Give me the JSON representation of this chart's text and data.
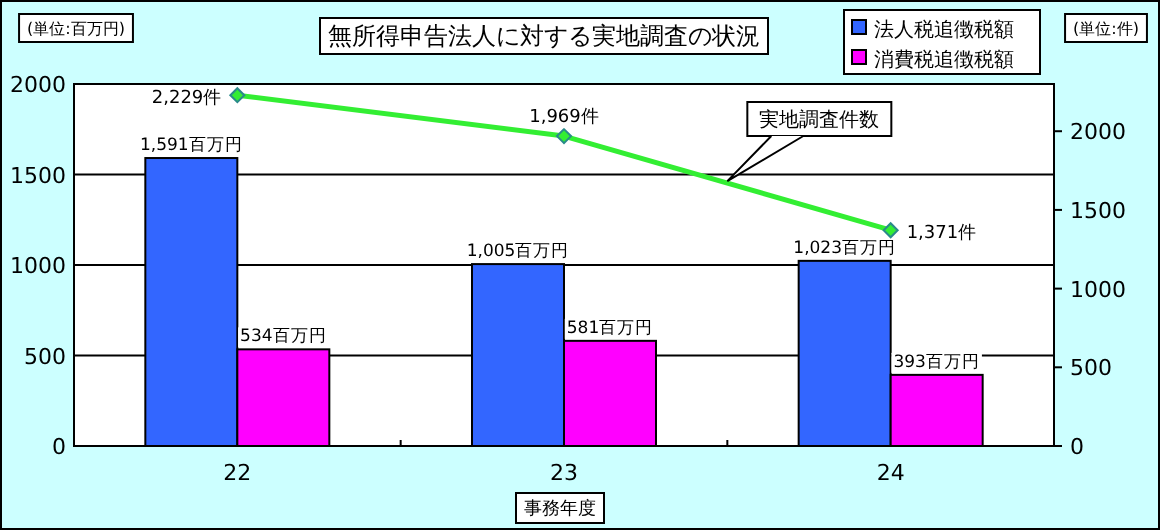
{
  "chart_data": {
    "type": "bar",
    "title": "無所得申告法人に対する実地調査の状況",
    "xlabel": "事務年度",
    "ylabel": "(単位:百万円)",
    "y2label": "(単位:件)",
    "categories": [
      "22",
      "23",
      "24"
    ],
    "series": [
      {
        "name": "法人税追徴税額",
        "color": "#3366ff",
        "values": [
          1591,
          1005,
          1023
        ],
        "value_labels": [
          "1,591百万円",
          "1,005百万円",
          "1,023百万円"
        ]
      },
      {
        "name": "消費税追徴税額",
        "color": "#ff00ff",
        "values": [
          534,
          581,
          393
        ],
        "value_labels": [
          "534百万円",
          "581百万円",
          "393百万円"
        ]
      },
      {
        "name": "実地調査件数",
        "type": "line",
        "axis": "y2",
        "color": "#33ee33",
        "values": [
          2229,
          1969,
          1371
        ],
        "value_labels": [
          "2,229件",
          "1,969件",
          "1,371件"
        ]
      }
    ],
    "ylim": [
      0,
      2000
    ],
    "yticks": [
      0,
      500,
      1000,
      1500,
      2000
    ],
    "y2lim": [
      0,
      2300
    ],
    "y2ticks": [
      0,
      500,
      1000,
      1500,
      2000
    ],
    "grid": "y",
    "legend": "top right",
    "marker": "diamond"
  }
}
